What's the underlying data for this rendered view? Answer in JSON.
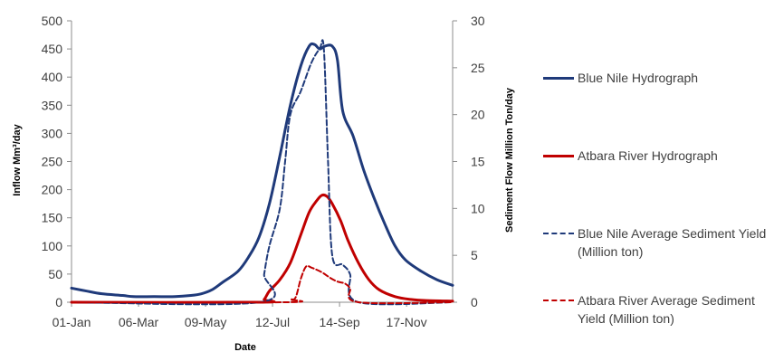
{
  "chart_data": {
    "type": "line",
    "xlabel": "Date",
    "y_left_label": "Inflow Mm³/day",
    "y_right_label": "Sediment Flow Million Ton/day",
    "x_range": [
      1,
      365
    ],
    "x_ticks": [
      {
        "label": "01-Jan",
        "day": 1
      },
      {
        "label": "06-Mar",
        "day": 65
      },
      {
        "label": "09-May",
        "day": 129
      },
      {
        "label": "12-Jul",
        "day": 193
      },
      {
        "label": "14-Sep",
        "day": 257
      },
      {
        "label": "17-Nov",
        "day": 321
      }
    ],
    "y_left_range": [
      0,
      500
    ],
    "y_left_ticks": [
      0,
      50,
      100,
      150,
      200,
      250,
      300,
      350,
      400,
      450,
      500
    ],
    "y_right_range": [
      0,
      30
    ],
    "y_right_ticks": [
      0,
      5,
      10,
      15,
      20,
      25,
      30
    ],
    "grid": false,
    "legend_position": "right",
    "series": [
      {
        "name": "Blue Nile Hydrograph",
        "axis": "left",
        "color": "#1F3A7A",
        "dash": "solid",
        "points": [
          [
            1,
            25
          ],
          [
            15,
            20
          ],
          [
            30,
            15
          ],
          [
            50,
            12
          ],
          [
            60,
            10
          ],
          [
            80,
            10
          ],
          [
            100,
            10
          ],
          [
            115,
            12
          ],
          [
            125,
            15
          ],
          [
            135,
            22
          ],
          [
            145,
            35
          ],
          [
            160,
            55
          ],
          [
            170,
            80
          ],
          [
            180,
            115
          ],
          [
            190,
            175
          ],
          [
            200,
            260
          ],
          [
            210,
            350
          ],
          [
            220,
            420
          ],
          [
            228,
            455
          ],
          [
            233,
            458
          ],
          [
            238,
            450
          ],
          [
            243,
            455
          ],
          [
            250,
            455
          ],
          [
            255,
            430
          ],
          [
            260,
            340
          ],
          [
            270,
            295
          ],
          [
            280,
            235
          ],
          [
            290,
            185
          ],
          [
            300,
            140
          ],
          [
            310,
            100
          ],
          [
            320,
            75
          ],
          [
            335,
            55
          ],
          [
            350,
            40
          ],
          [
            365,
            30
          ]
        ]
      },
      {
        "name": "Atbara River Hydrograph",
        "axis": "left",
        "color": "#C00000",
        "dash": "solid",
        "points": [
          [
            1,
            0
          ],
          [
            180,
            0
          ],
          [
            185,
            5
          ],
          [
            190,
            20
          ],
          [
            200,
            40
          ],
          [
            210,
            70
          ],
          [
            220,
            120
          ],
          [
            228,
            160
          ],
          [
            235,
            180
          ],
          [
            240,
            190
          ],
          [
            245,
            188
          ],
          [
            250,
            175
          ],
          [
            258,
            145
          ],
          [
            265,
            110
          ],
          [
            275,
            70
          ],
          [
            285,
            40
          ],
          [
            295,
            22
          ],
          [
            310,
            10
          ],
          [
            325,
            5
          ],
          [
            340,
            3
          ],
          [
            365,
            2
          ]
        ]
      },
      {
        "name": "Blue Nile Average Sediment Yield (Million ton)",
        "axis": "right",
        "color": "#1F3A7A",
        "dash": "dashed",
        "points": [
          [
            1,
            0
          ],
          [
            181,
            0
          ],
          [
            185,
            3
          ],
          [
            190,
            6
          ],
          [
            200,
            10
          ],
          [
            205,
            15
          ],
          [
            210,
            20
          ],
          [
            220,
            22.5
          ],
          [
            230,
            25.5
          ],
          [
            238,
            27
          ],
          [
            242,
            27
          ],
          [
            246,
            15
          ],
          [
            250,
            5
          ],
          [
            260,
            4
          ],
          [
            267,
            3
          ],
          [
            275,
            0
          ],
          [
            365,
            0
          ]
        ]
      },
      {
        "name": "Atbara River Average Sediment Yield (Million ton)",
        "axis": "right",
        "color": "#C00000",
        "dash": "dashed",
        "points": [
          [
            1,
            0
          ],
          [
            205,
            0
          ],
          [
            210,
            0.3
          ],
          [
            215,
            0.5
          ],
          [
            220,
            2.5
          ],
          [
            225,
            3.8
          ],
          [
            230,
            3.7
          ],
          [
            240,
            3.2
          ],
          [
            248,
            2.6
          ],
          [
            255,
            2.2
          ],
          [
            262,
            2
          ],
          [
            267,
            1.5
          ],
          [
            275,
            0
          ],
          [
            365,
            0
          ]
        ]
      }
    ]
  }
}
